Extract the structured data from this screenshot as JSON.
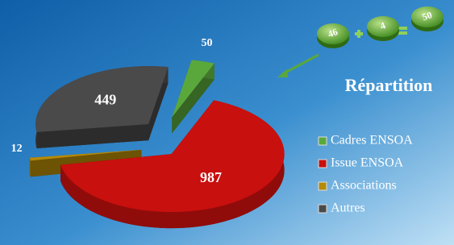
{
  "chart_data": {
    "type": "pie",
    "title": "Répartition",
    "categories": [
      "Cadres ENSOA",
      "Issue  ENSOA",
      "Associations",
      "Autres"
    ],
    "values": [
      50,
      987,
      12,
      449
    ],
    "colors": [
      "#5aa83c",
      "#c8100e",
      "#b58a06",
      "#4a4a4a"
    ],
    "legend": "right",
    "equation": {
      "operands": [
        46,
        4
      ],
      "result": 50
    }
  }
}
